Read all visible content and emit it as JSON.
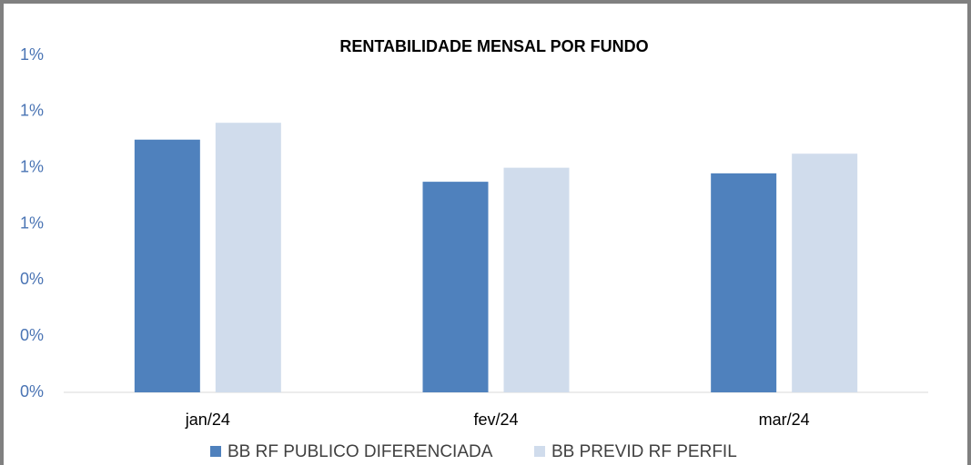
{
  "chart_data": {
    "type": "bar",
    "title": "RENTABILIDADE MENSAL POR FUNDO",
    "categories": [
      "jan/24",
      "fev/24",
      "mar/24"
    ],
    "series": [
      {
        "name": "BB RF PUBLICO DIFERENCIADA",
        "color": "#4f81bd",
        "values": [
          0.9,
          0.75,
          0.78
        ]
      },
      {
        "name": "BB PREVID RF PERFIL",
        "color": "#d0dcec",
        "values": [
          0.96,
          0.8,
          0.85
        ]
      }
    ],
    "ylim": [
      0,
      1.2
    ],
    "yticks": [
      {
        "value": 0,
        "label": "0%"
      },
      {
        "value": 0.2,
        "label": "0%"
      },
      {
        "value": 0.4,
        "label": "0%"
      },
      {
        "value": 0.6,
        "label": "1%"
      },
      {
        "value": 0.8,
        "label": "1%"
      },
      {
        "value": 1.0,
        "label": "1%"
      },
      {
        "value": 1.2,
        "label": "1%"
      }
    ],
    "grid": false,
    "legend": "bottom"
  }
}
